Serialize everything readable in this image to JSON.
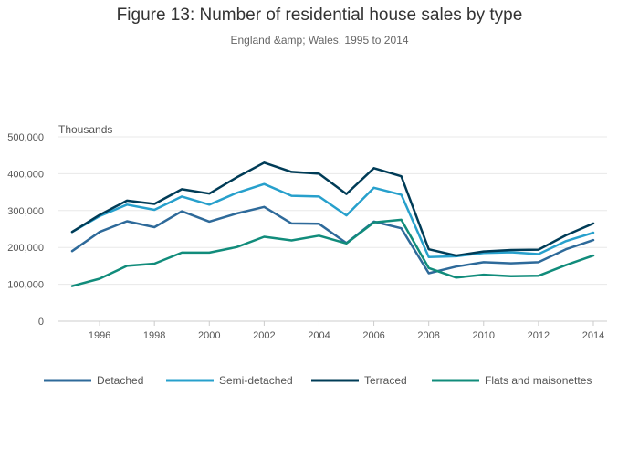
{
  "chart_data": {
    "type": "line",
    "title": "Figure 13: Number of residential house sales by type",
    "subtitle": "England &amp; Wales, 1995 to 2014",
    "ylabel": "Thousands",
    "xlabel": "",
    "x": [
      1995,
      1996,
      1997,
      1998,
      1999,
      2000,
      2001,
      2002,
      2003,
      2004,
      2005,
      2006,
      2007,
      2008,
      2009,
      2010,
      2011,
      2012,
      2013,
      2014
    ],
    "xticks": [
      "1996",
      "1998",
      "2000",
      "2002",
      "2004",
      "2006",
      "2008",
      "2010",
      "2012",
      "2014"
    ],
    "yticks": [
      "0",
      "100,000",
      "200,000",
      "300,000",
      "400,000",
      "500,000"
    ],
    "ylim": [
      0,
      500000
    ],
    "grid": true,
    "legend_position": "bottom",
    "series": [
      {
        "name": "Detached",
        "color": "#2e6a9a",
        "values": [
          190000,
          242000,
          271000,
          255000,
          298000,
          270000,
          292000,
          310000,
          265000,
          264000,
          212000,
          270000,
          252000,
          130000,
          148000,
          160000,
          157000,
          160000,
          195000,
          220000
        ]
      },
      {
        "name": "Semi-detached",
        "color": "#27a0cc",
        "values": [
          242000,
          285000,
          316000,
          302000,
          338000,
          316000,
          348000,
          372000,
          340000,
          338000,
          287000,
          362000,
          343000,
          174000,
          176000,
          185000,
          187000,
          182000,
          217000,
          240000
        ]
      },
      {
        "name": "Terraced",
        "color": "#003c57",
        "values": [
          242000,
          288000,
          327000,
          318000,
          358000,
          346000,
          390000,
          430000,
          405000,
          400000,
          345000,
          415000,
          393000,
          195000,
          178000,
          189000,
          193000,
          194000,
          233000,
          265000
        ]
      },
      {
        "name": "Flats and maisonettes",
        "color": "#118c7b",
        "values": [
          95000,
          115000,
          150000,
          156000,
          186000,
          186000,
          201000,
          229000,
          219000,
          232000,
          211000,
          268000,
          275000,
          144000,
          118000,
          126000,
          122000,
          123000,
          152000,
          178000
        ]
      }
    ]
  }
}
